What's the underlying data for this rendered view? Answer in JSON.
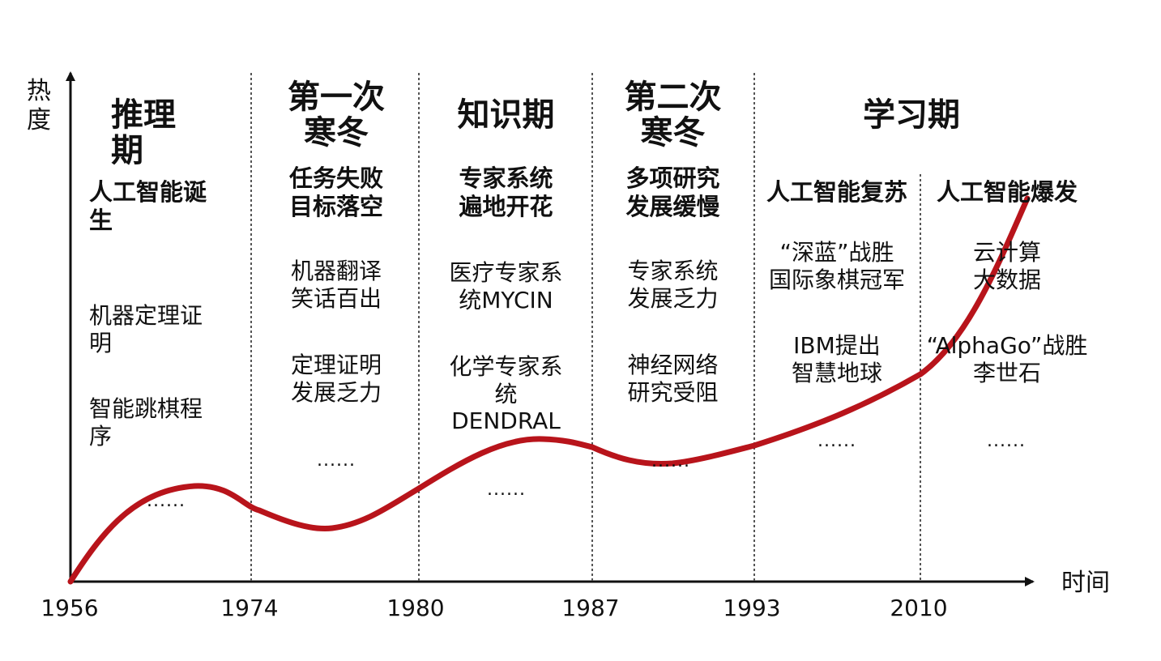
{
  "axes": {
    "y_label": "热\n度",
    "x_label": "时间"
  },
  "years": [
    "1956",
    "1974",
    "1980",
    "1987",
    "1993",
    "2010"
  ],
  "periods": [
    {
      "title": "推理\n期",
      "subtitle": "人工智能诞\n生",
      "items": [
        "机器定理证\n明",
        "智能跳棋程\n序",
        "......"
      ]
    },
    {
      "title": "第一次\n寒冬",
      "subtitle": "任务失败\n目标落空",
      "items": [
        "机器翻译\n笑话百出",
        "定理证明\n发展乏力",
        "......"
      ]
    },
    {
      "title": "知识期",
      "subtitle": "专家系统\n遍地开花",
      "items": [
        "医疗专家系\n统MYCIN",
        "化学专家系\n统\nDENDRAL",
        "......"
      ]
    },
    {
      "title": "第二次\n寒冬",
      "subtitle": "多项研究\n发展缓慢",
      "items": [
        "专家系统\n发展乏力",
        "神经网络\n研究受阻",
        "......"
      ]
    },
    {
      "title": "学习期",
      "subtitle": "人工智能复苏",
      "items": [
        "“深蓝”战胜\n国际象棋冠军",
        "IBM提出\n智慧地球",
        "......"
      ]
    },
    {
      "title": "",
      "subtitle": "人工智能爆发",
      "items": [
        "云计算\n大数据",
        "“AlphaGo”战胜\n李世石",
        "......"
      ]
    }
  ],
  "colors": {
    "curve": "#b8141b",
    "axis": "#111111",
    "divider": "#555555"
  }
}
